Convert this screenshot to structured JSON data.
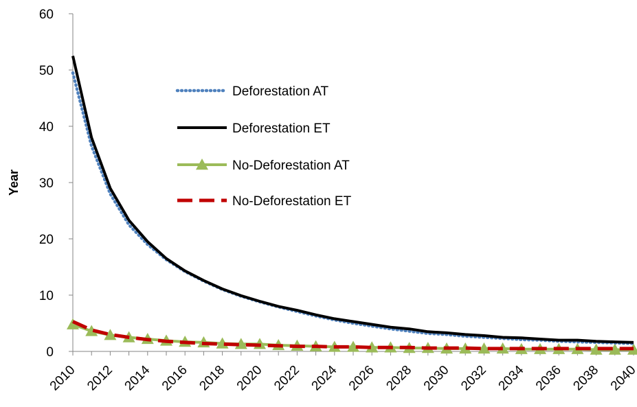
{
  "chart_data": {
    "type": "line",
    "title": "",
    "xlabel": "",
    "ylabel": "Year",
    "xlim": [
      2010,
      2040
    ],
    "ylim": [
      0,
      60
    ],
    "y_ticks": [
      0,
      10,
      20,
      30,
      40,
      50,
      60
    ],
    "x_ticks": [
      2010,
      2012,
      2014,
      2016,
      2018,
      2020,
      2022,
      2024,
      2026,
      2028,
      2030,
      2032,
      2034,
      2036,
      2038,
      2040
    ],
    "grid": false,
    "legend_position": "center-left (inside plot)",
    "x": [
      2010,
      2011,
      2012,
      2013,
      2014,
      2015,
      2016,
      2017,
      2018,
      2019,
      2020,
      2021,
      2022,
      2023,
      2024,
      2025,
      2026,
      2027,
      2028,
      2029,
      2030,
      2031,
      2032,
      2033,
      2034,
      2035,
      2036,
      2037,
      2038,
      2039,
      2040
    ],
    "series": [
      {
        "name": "Deforestation AT",
        "style": "dotted",
        "color": "#4F81BD",
        "values": [
          49.5,
          36.5,
          28.0,
          22.5,
          19.0,
          16.3,
          14.2,
          12.5,
          11.0,
          9.8,
          8.8,
          7.9,
          7.1,
          6.3,
          5.6,
          5.0,
          4.5,
          4.0,
          3.6,
          3.2,
          3.0,
          2.7,
          2.5,
          2.3,
          2.1,
          2.0,
          1.8,
          1.7,
          1.6,
          1.5,
          1.4
        ]
      },
      {
        "name": "Deforestation ET",
        "style": "solid",
        "color": "#000000",
        "values": [
          52.5,
          38.0,
          29.0,
          23.3,
          19.5,
          16.5,
          14.3,
          12.6,
          11.1,
          9.9,
          8.9,
          8.0,
          7.3,
          6.5,
          5.8,
          5.3,
          4.8,
          4.3,
          4.0,
          3.5,
          3.3,
          3.0,
          2.8,
          2.5,
          2.4,
          2.2,
          2.0,
          2.0,
          1.8,
          1.7,
          1.6
        ]
      },
      {
        "name": "No-Deforestation AT",
        "style": "solid-triangle-markers",
        "color": "#9BBB59",
        "values": [
          4.8,
          3.6,
          2.9,
          2.5,
          2.2,
          1.9,
          1.7,
          1.6,
          1.4,
          1.3,
          1.3,
          1.1,
          1.0,
          0.9,
          0.8,
          0.8,
          0.7,
          0.7,
          0.6,
          0.6,
          0.5,
          0.5,
          0.5,
          0.5,
          0.4,
          0.4,
          0.4,
          0.4,
          0.3,
          0.3,
          0.3
        ]
      },
      {
        "name": "No-Deforestation ET",
        "style": "dashed",
        "color": "#C00000",
        "values": [
          5.3,
          3.8,
          3.0,
          2.5,
          2.1,
          1.8,
          1.6,
          1.4,
          1.3,
          1.2,
          1.1,
          1.0,
          0.9,
          0.9,
          0.8,
          0.8,
          0.7,
          0.7,
          0.7,
          0.6,
          0.6,
          0.6,
          0.5,
          0.5,
          0.5,
          0.5,
          0.5,
          0.5,
          0.5,
          0.5,
          0.5
        ]
      }
    ]
  }
}
